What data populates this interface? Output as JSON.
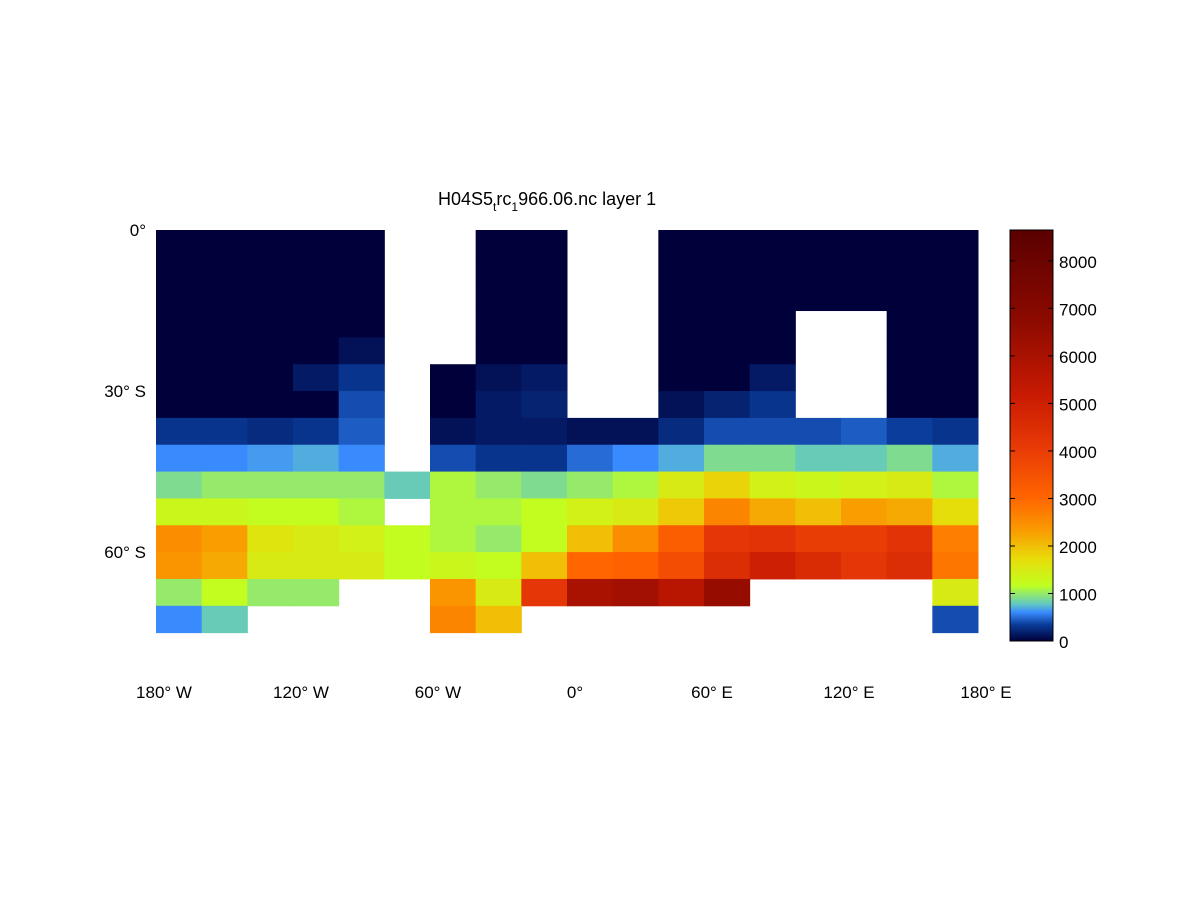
{
  "chart_data": {
    "type": "heatmap",
    "title_parts": {
      "a": "H04S5",
      "sub1": "t",
      "b": "rc",
      "sub2": "1",
      "c": "966.06.nc layer 1"
    },
    "lon_ticks": [
      "180° W",
      "120° W",
      "60° W",
      "0°",
      "60° E",
      "120° E",
      "180° E"
    ],
    "lon_tick_values": [
      -180,
      -120,
      -60,
      0,
      60,
      120,
      180
    ],
    "lat_ticks": [
      "0°",
      "30° S",
      "60° S"
    ],
    "lat_tick_values": [
      0,
      -30,
      -60
    ],
    "lon_range": [
      -180,
      180
    ],
    "lat_range": [
      -76,
      0
    ],
    "colorbar": {
      "ticks": [
        "0",
        "1000",
        "2000",
        "3000",
        "4000",
        "5000",
        "6000",
        "7000",
        "8000"
      ],
      "tick_values": [
        0,
        1000,
        2000,
        3000,
        4000,
        5000,
        6000,
        7000,
        8000
      ],
      "range": [
        0,
        8650
      ],
      "stops": [
        [
          0,
          "#00003a"
        ],
        [
          0.04,
          "#0a3c9a"
        ],
        [
          0.07,
          "#3a8cff"
        ],
        [
          0.09,
          "#62c8c0"
        ],
        [
          0.12,
          "#9ef05a"
        ],
        [
          0.135,
          "#c0ff20"
        ],
        [
          0.2,
          "#e8dc0a"
        ],
        [
          0.27,
          "#fa9a00"
        ],
        [
          0.35,
          "#ff6400"
        ],
        [
          0.47,
          "#e83a06"
        ],
        [
          0.6,
          "#c81a02"
        ],
        [
          0.78,
          "#8c0a00"
        ],
        [
          1,
          "#5a0000"
        ]
      ]
    },
    "land_color": "#ffffff",
    "grid": {
      "lon_centers": [
        -170,
        -150,
        -130,
        -110,
        -90,
        -70,
        -50,
        -30,
        -10,
        10,
        30,
        50,
        70,
        90,
        110,
        130,
        150,
        170
      ],
      "lat_centers": [
        -2.5,
        -7.5,
        -12.5,
        -17.5,
        -22.5,
        -27.5,
        -32.5,
        -37.5,
        -42.5,
        -47.5,
        -52.5,
        -57.5,
        -62.5,
        -67.5,
        -72.5
      ],
      "values": [
        [
          0,
          0,
          0,
          0,
          0,
          null,
          null,
          0,
          0,
          null,
          null,
          0,
          0,
          0,
          0,
          0,
          0,
          0
        ],
        [
          0,
          0,
          0,
          0,
          0,
          null,
          null,
          0,
          0,
          null,
          null,
          0,
          0,
          0,
          0,
          0,
          0,
          0
        ],
        [
          0,
          0,
          0,
          0,
          0,
          null,
          null,
          0,
          0,
          null,
          null,
          0,
          0,
          0,
          0,
          0,
          0,
          0
        ],
        [
          0,
          0,
          0,
          0,
          0,
          null,
          null,
          0,
          0,
          null,
          null,
          0,
          0,
          0,
          null,
          null,
          0,
          0
        ],
        [
          0,
          0,
          0,
          0,
          100,
          null,
          null,
          0,
          0,
          null,
          null,
          0,
          0,
          0,
          null,
          null,
          0,
          0
        ],
        [
          0,
          0,
          0,
          150,
          300,
          null,
          0,
          100,
          150,
          null,
          null,
          0,
          0,
          150,
          null,
          null,
          0,
          0
        ],
        [
          0,
          0,
          0,
          0,
          400,
          null,
          0,
          150,
          200,
          null,
          null,
          100,
          200,
          300,
          null,
          null,
          0,
          0
        ],
        [
          300,
          300,
          250,
          300,
          450,
          null,
          100,
          150,
          150,
          100,
          100,
          250,
          400,
          400,
          400,
          450,
          350,
          300
        ],
        [
          600,
          600,
          650,
          700,
          600,
          null,
          400,
          300,
          300,
          500,
          600,
          700,
          900,
          900,
          800,
          800,
          900,
          700
        ],
        [
          900,
          1000,
          1000,
          1000,
          1000,
          800,
          1100,
          1000,
          900,
          1000,
          1100,
          1500,
          1800,
          1400,
          1300,
          1400,
          1500,
          1100
        ],
        [
          1300,
          1300,
          1200,
          1200,
          1100,
          null,
          1100,
          1100,
          1200,
          1400,
          1500,
          1900,
          2600,
          2200,
          2000,
          2300,
          2200,
          1700
        ],
        [
          2500,
          2300,
          1600,
          1500,
          1400,
          1200,
          1100,
          1000,
          1200,
          2000,
          2500,
          3200,
          4200,
          4300,
          4000,
          4000,
          4300,
          2700
        ],
        [
          2400,
          2200,
          1500,
          1500,
          1500,
          1200,
          1300,
          1200,
          2000,
          3000,
          3100,
          3600,
          4500,
          5000,
          4600,
          4200,
          4500,
          2800
        ],
        [
          1000,
          1200,
          1000,
          1000,
          null,
          null,
          2400,
          1500,
          4200,
          6000,
          6200,
          5600,
          6500,
          null,
          null,
          null,
          null,
          1500
        ],
        [
          600,
          800,
          null,
          null,
          null,
          null,
          2600,
          2000,
          null,
          null,
          null,
          null,
          null,
          null,
          null,
          null,
          null,
          400
        ]
      ]
    }
  }
}
